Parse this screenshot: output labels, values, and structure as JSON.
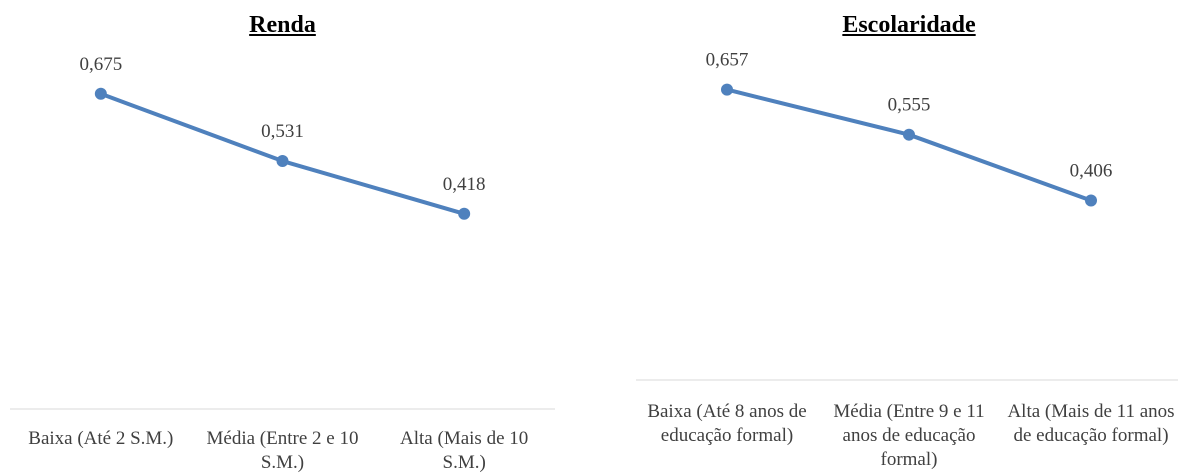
{
  "chart_data": [
    {
      "type": "line",
      "title": "Renda",
      "categories": [
        "Baixa (Até 2 S.M.)",
        "Média (Entre 2 e 10 S.M.)",
        "Alta (Mais de 10 S.M.)"
      ],
      "values": [
        0.675,
        0.531,
        0.418
      ],
      "data_labels": [
        "0,675",
        "0,531",
        "0,418"
      ],
      "ylim": [
        0,
        0.8
      ],
      "grid": false,
      "legend": "none",
      "color": "#4F81BD"
    },
    {
      "type": "line",
      "title": "Escolaridade",
      "categories": [
        "Baixa (Até 8 anos de educação formal)",
        "Média (Entre 9 e 11 anos de educação formal)",
        "Alta (Mais de 11 anos de educação formal)"
      ],
      "values": [
        0.657,
        0.555,
        0.406
      ],
      "data_labels": [
        "0,657",
        "0,555",
        "0,406"
      ],
      "ylim": [
        0,
        0.8
      ],
      "grid": false,
      "legend": "none",
      "color": "#4F81BD"
    }
  ]
}
